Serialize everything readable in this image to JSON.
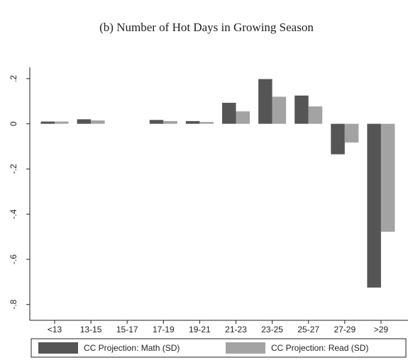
{
  "chart_data": {
    "type": "bar",
    "title": "(b) Number of Hot Days in Growing Season",
    "categories": [
      "<13",
      "13-15",
      "15-17",
      "17-19",
      "19-21",
      "21-23",
      "23-25",
      "25-27",
      "27-29",
      ">29"
    ],
    "series": [
      {
        "name": "CC Projection: Math (SD)",
        "color": "#555555",
        "values": [
          0.01,
          0.02,
          0,
          0.017,
          0.012,
          0.093,
          0.198,
          0.125,
          -0.135,
          -0.725
        ]
      },
      {
        "name": "CC Projection: Read (SD)",
        "color": "#a3a3a3",
        "values": [
          0.01,
          0.015,
          0,
          0.012,
          0.008,
          0.055,
          0.12,
          0.077,
          -0.083,
          -0.478
        ]
      }
    ],
    "ylim": [
      -0.87,
      0.25
    ],
    "yticks": [
      {
        "value": 0.2,
        "label": ".2"
      },
      0,
      {
        "value": -0.2,
        "label": "-.2"
      },
      {
        "value": -0.4,
        "label": "-.4"
      },
      {
        "value": -0.6,
        "label": "-.6"
      },
      {
        "value": -0.8,
        "label": "-.8"
      }
    ],
    "grid": false,
    "legend": "bottom"
  }
}
